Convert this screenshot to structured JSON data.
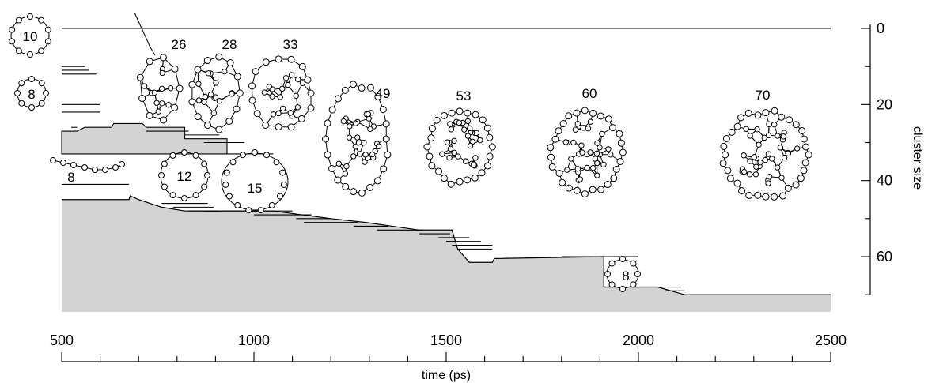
{
  "chart_data": {
    "type": "area",
    "xaxis": {
      "label": "time (ps)",
      "range": [
        500,
        2500
      ],
      "ticks": [
        500,
        1000,
        1500,
        2000,
        2500
      ]
    },
    "yaxis": {
      "label": "cluster size",
      "range": [
        -3,
        73
      ],
      "inverted": true,
      "side": "right",
      "ticks": [
        0,
        20,
        40,
        60
      ]
    },
    "largest_cluster_size": [
      [
        500,
        45
      ],
      [
        675,
        45
      ],
      [
        678,
        44
      ],
      [
        700,
        45
      ],
      [
        760,
        47
      ],
      [
        820,
        48
      ],
      [
        905,
        48
      ],
      [
        1000,
        48
      ],
      [
        1050,
        48
      ],
      [
        1200,
        50
      ],
      [
        1290,
        51
      ],
      [
        1430,
        53
      ],
      [
        1515,
        53
      ],
      [
        1530,
        58
      ],
      [
        1560,
        61.5
      ],
      [
        1620,
        61.5
      ],
      [
        1625,
        60.5
      ],
      [
        1910,
        60
      ],
      [
        1910,
        68
      ],
      [
        2050,
        68
      ],
      [
        2120,
        70
      ],
      [
        2500,
        70
      ]
    ],
    "branch_cluster_size": [
      [
        500,
        27
      ],
      [
        540,
        27
      ],
      [
        560,
        26
      ],
      [
        630,
        26
      ],
      [
        635,
        25
      ],
      [
        710,
        25
      ],
      [
        720,
        26
      ],
      [
        820,
        26
      ],
      [
        820,
        29
      ],
      [
        930,
        29
      ],
      [
        930,
        33
      ],
      [
        500,
        33
      ]
    ],
    "fragment_lines": [
      {
        "y": 0,
        "x": [
          500,
          2500
        ]
      },
      {
        "y": 10,
        "x": [
          500,
          560
        ]
      },
      {
        "y": 11,
        "x": [
          500,
          570
        ]
      },
      {
        "y": 12,
        "x": [
          500,
          590
        ]
      },
      {
        "y": 20,
        "x": [
          500,
          600
        ]
      },
      {
        "y": 22,
        "x": [
          500,
          600
        ]
      },
      {
        "y": 26,
        "x": [
          525,
          540
        ]
      },
      {
        "y": 27,
        "x": [
          720,
          830
        ]
      },
      {
        "y": 28,
        "x": [
          820,
          910
        ]
      },
      {
        "y": 30,
        "x": [
          870,
          975
        ]
      },
      {
        "y": 33,
        "x": [
          930,
          1050
        ]
      },
      {
        "y": 41,
        "x": [
          500,
          675
        ]
      },
      {
        "y": 46,
        "x": [
          760,
          880
        ]
      },
      {
        "y": 47,
        "x": [
          790,
          895
        ]
      },
      {
        "y": 48,
        "x": [
          830,
          910
        ]
      },
      {
        "y": 48,
        "x": [
          870,
          1100
        ]
      },
      {
        "y": 49,
        "x": [
          1000,
          1150
        ]
      },
      {
        "y": 50,
        "x": [
          1110,
          1200
        ]
      },
      {
        "y": 51,
        "x": [
          1130,
          1270
        ]
      },
      {
        "y": 52,
        "x": [
          1260,
          1350
        ]
      },
      {
        "y": 53,
        "x": [
          1320,
          1440
        ]
      },
      {
        "y": 54,
        "x": [
          1430,
          1510
        ]
      },
      {
        "y": 55,
        "x": [
          1480,
          1560
        ]
      },
      {
        "y": 56,
        "x": [
          1500,
          1590
        ]
      },
      {
        "y": 57,
        "x": [
          1515,
          1620
        ]
      },
      {
        "y": 58,
        "x": [
          1530,
          1620
        ]
      },
      {
        "y": 60,
        "x": [
          1800,
          2000
        ]
      },
      {
        "y": 67,
        "x": [
          1950,
          2000
        ]
      },
      {
        "y": 68,
        "x": [
          2050,
          2110
        ]
      },
      {
        "y": 69,
        "x": [
          2070,
          2120
        ]
      }
    ],
    "fill_color": "#d3d3d3",
    "line_color": "#000000",
    "grid": false
  },
  "annotations": {
    "ring_labels": [
      "10",
      "8"
    ],
    "chain_label": "8",
    "loop_labels": [
      "12",
      "15"
    ],
    "cage_labels": [
      "26",
      "28",
      "33",
      "49",
      "53",
      "60",
      "70"
    ],
    "fragment_label": "8"
  }
}
